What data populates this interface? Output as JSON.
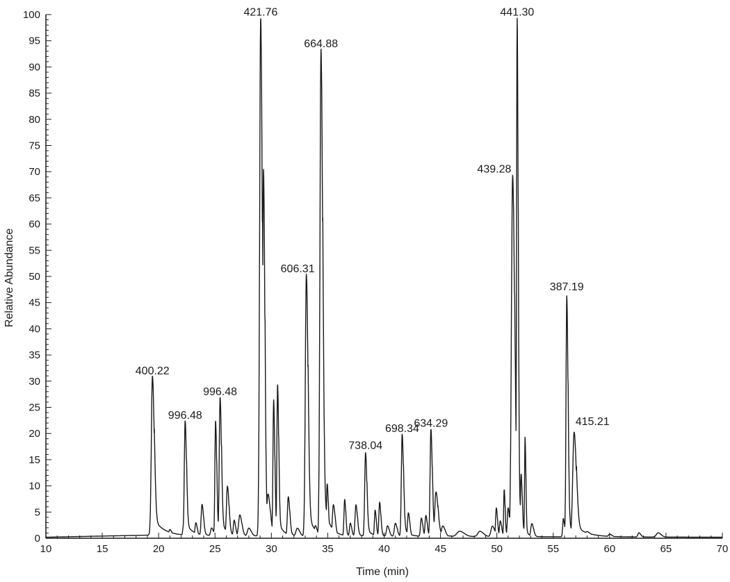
{
  "chart_data": {
    "type": "line",
    "title": "",
    "xlabel": "Time (min)",
    "ylabel": "Relative Abundance",
    "xlim": [
      10,
      70
    ],
    "ylim": [
      0,
      100
    ],
    "x_ticks": [
      10,
      15,
      20,
      25,
      30,
      35,
      40,
      45,
      50,
      55,
      60,
      65,
      70
    ],
    "y_ticks": [
      0,
      5,
      10,
      15,
      20,
      25,
      30,
      35,
      40,
      45,
      50,
      55,
      60,
      65,
      70,
      75,
      80,
      85,
      90,
      95,
      100
    ],
    "x_tick_labels": [
      "10",
      "15",
      "20",
      "25",
      "30",
      "35",
      "40",
      "45",
      "50",
      "55",
      "60",
      "65",
      "70"
    ],
    "y_tick_labels": [
      "0",
      "5",
      "10",
      "15",
      "20",
      "25",
      "30",
      "35",
      "40",
      "45",
      "50",
      "55",
      "60",
      "65",
      "70",
      "75",
      "80",
      "85",
      "90",
      "95",
      "100"
    ],
    "grid": false,
    "line_color": "#1a1a1a",
    "baseline_segments": [
      {
        "x_start": 10.0,
        "x_end": 19.3,
        "y_start": 0.2,
        "y_end": 0.6
      },
      {
        "x_start": 19.3,
        "x_end": 70.0,
        "y_start": 0.5,
        "y_end": 0.2
      }
    ],
    "peaks": [
      {
        "x": 19.45,
        "y": 30.5,
        "width": 0.16,
        "tail": 0.9,
        "label": "400.22"
      },
      {
        "x": 21.0,
        "y": 1.2,
        "width": 0.15,
        "tail": 0.2
      },
      {
        "x": 22.2,
        "y": 2.0,
        "width": 0.1,
        "tail": 0.2
      },
      {
        "x": 22.35,
        "y": 22.0,
        "width": 0.12,
        "tail": 0.6,
        "label": "996.48"
      },
      {
        "x": 23.3,
        "y": 2.5,
        "width": 0.12,
        "tail": 0.2
      },
      {
        "x": 23.85,
        "y": 6.0,
        "width": 0.13,
        "tail": 0.3
      },
      {
        "x": 24.7,
        "y": 1.5,
        "width": 0.15,
        "tail": 0.2
      },
      {
        "x": 25.05,
        "y": 22.0,
        "width": 0.1,
        "tail": 0.3
      },
      {
        "x": 25.45,
        "y": 26.5,
        "width": 0.12,
        "tail": 0.5,
        "label": "996.48"
      },
      {
        "x": 26.1,
        "y": 9.5,
        "width": 0.14,
        "tail": 0.3
      },
      {
        "x": 26.7,
        "y": 3.0,
        "width": 0.12,
        "tail": 0.2
      },
      {
        "x": 27.2,
        "y": 4.0,
        "width": 0.18,
        "tail": 0.2
      },
      {
        "x": 28.0,
        "y": 1.5,
        "width": 0.2,
        "tail": 0.2
      },
      {
        "x": 29.05,
        "y": 99.0,
        "width": 0.15,
        "tail": 0.4,
        "label": "421.76"
      },
      {
        "x": 29.3,
        "y": 70.0,
        "width": 0.12,
        "tail": 0.3
      },
      {
        "x": 29.7,
        "y": 8.0,
        "width": 0.2,
        "tail": 0.3
      },
      {
        "x": 30.2,
        "y": 26.0,
        "width": 0.1,
        "tail": 0.3
      },
      {
        "x": 30.55,
        "y": 29.0,
        "width": 0.1,
        "tail": 0.4
      },
      {
        "x": 31.5,
        "y": 7.5,
        "width": 0.13,
        "tail": 0.3
      },
      {
        "x": 32.3,
        "y": 1.5,
        "width": 0.2,
        "tail": 0.2
      },
      {
        "x": 33.1,
        "y": 50.0,
        "width": 0.15,
        "tail": 0.5,
        "label": "606.31"
      },
      {
        "x": 33.9,
        "y": 2.0,
        "width": 0.15,
        "tail": 0.2
      },
      {
        "x": 34.4,
        "y": 93.0,
        "width": 0.15,
        "tail": 0.5,
        "label": "664.88"
      },
      {
        "x": 34.95,
        "y": 10.0,
        "width": 0.1,
        "tail": 0.3
      },
      {
        "x": 35.5,
        "y": 6.0,
        "width": 0.15,
        "tail": 0.3
      },
      {
        "x": 36.5,
        "y": 7.0,
        "width": 0.1,
        "tail": 0.2
      },
      {
        "x": 37.0,
        "y": 2.5,
        "width": 0.12,
        "tail": 0.2
      },
      {
        "x": 37.5,
        "y": 6.0,
        "width": 0.13,
        "tail": 0.3
      },
      {
        "x": 38.35,
        "y": 16.0,
        "width": 0.12,
        "tail": 0.4,
        "label": "738.04"
      },
      {
        "x": 39.2,
        "y": 5.0,
        "width": 0.1,
        "tail": 0.2
      },
      {
        "x": 39.6,
        "y": 6.5,
        "width": 0.11,
        "tail": 0.2
      },
      {
        "x": 40.3,
        "y": 2.0,
        "width": 0.15,
        "tail": 0.2
      },
      {
        "x": 41.0,
        "y": 2.5,
        "width": 0.15,
        "tail": 0.2
      },
      {
        "x": 41.6,
        "y": 19.5,
        "width": 0.12,
        "tail": 0.4,
        "label": "698.34"
      },
      {
        "x": 42.15,
        "y": 4.5,
        "width": 0.12,
        "tail": 0.2
      },
      {
        "x": 43.3,
        "y": 3.5,
        "width": 0.12,
        "tail": 0.2
      },
      {
        "x": 43.7,
        "y": 4.0,
        "width": 0.12,
        "tail": 0.2
      },
      {
        "x": 44.15,
        "y": 20.5,
        "width": 0.12,
        "tail": 0.4,
        "label": "634.29"
      },
      {
        "x": 44.6,
        "y": 8.5,
        "width": 0.18,
        "tail": 0.5
      },
      {
        "x": 45.2,
        "y": 2.0,
        "width": 0.2,
        "tail": 0.2
      },
      {
        "x": 46.7,
        "y": 1.0,
        "width": 0.4,
        "tail": 0.2
      },
      {
        "x": 48.5,
        "y": 1.0,
        "width": 0.3,
        "tail": 0.2
      },
      {
        "x": 49.6,
        "y": 2.0,
        "width": 0.2,
        "tail": 0.2
      },
      {
        "x": 49.95,
        "y": 5.5,
        "width": 0.1,
        "tail": 0.2
      },
      {
        "x": 50.3,
        "y": 3.0,
        "width": 0.12,
        "tail": 0.2
      },
      {
        "x": 50.65,
        "y": 9.0,
        "width": 0.08,
        "tail": 0.2
      },
      {
        "x": 51.0,
        "y": 5.5,
        "width": 0.12,
        "tail": 0.2
      },
      {
        "x": 51.4,
        "y": 69.0,
        "width": 0.18,
        "tail": 0.3,
        "label": "439.28"
      },
      {
        "x": 51.8,
        "y": 99.0,
        "width": 0.09,
        "tail": 0.3,
        "label": "441.30"
      },
      {
        "x": 52.15,
        "y": 12.0,
        "width": 0.1,
        "tail": 0.3
      },
      {
        "x": 52.5,
        "y": 19.0,
        "width": 0.07,
        "tail": 0.2
      },
      {
        "x": 53.1,
        "y": 2.5,
        "width": 0.15,
        "tail": 0.2
      },
      {
        "x": 55.9,
        "y": 3.5,
        "width": 0.1,
        "tail": 0.2
      },
      {
        "x": 56.2,
        "y": 46.0,
        "width": 0.11,
        "tail": 0.3,
        "label": "387.19"
      },
      {
        "x": 56.85,
        "y": 20.0,
        "width": 0.2,
        "tail": 1.0,
        "label": "415.21"
      },
      {
        "x": 58.0,
        "y": 1.0,
        "width": 0.3,
        "tail": 0.3
      },
      {
        "x": 60.0,
        "y": 0.5,
        "width": 0.2,
        "tail": 0.2
      },
      {
        "x": 62.6,
        "y": 0.8,
        "width": 0.15,
        "tail": 0.2
      },
      {
        "x": 64.3,
        "y": 0.8,
        "width": 0.25,
        "tail": 0.2
      }
    ]
  }
}
